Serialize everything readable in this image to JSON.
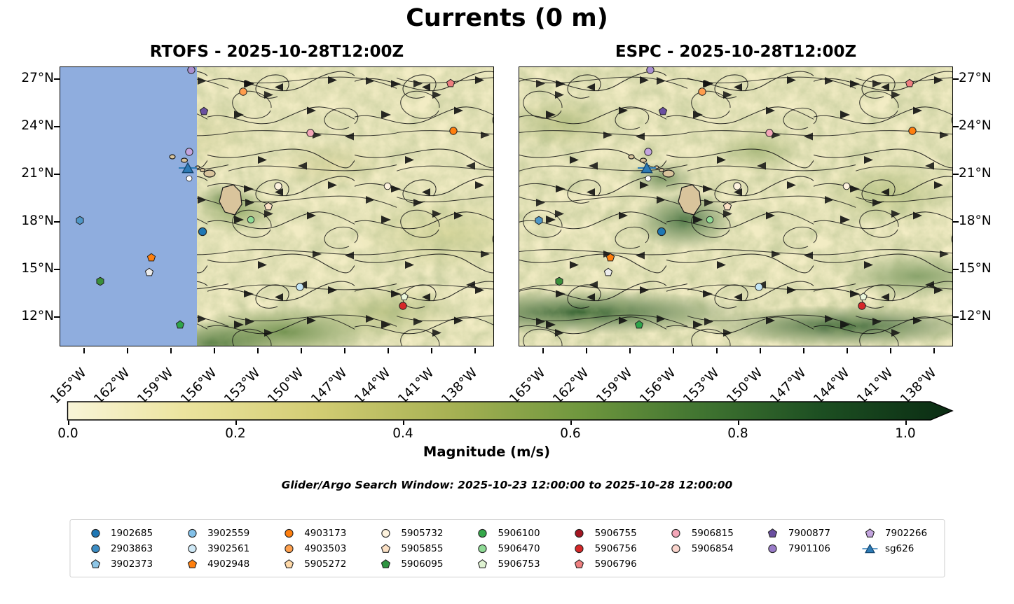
{
  "title": "Currents (0 m)",
  "panels": [
    {
      "id": "rtofs",
      "title": "RTOFS - 2025-10-28T12:00Z"
    },
    {
      "id": "espc",
      "title": "ESPC - 2025-10-28T12:00Z"
    }
  ],
  "axes": {
    "lat_labels": [
      "27°N",
      "24°N",
      "21°N",
      "18°N",
      "15°N",
      "12°N"
    ],
    "lon_labels": [
      "165°W",
      "162°W",
      "159°W",
      "156°W",
      "153°W",
      "150°W",
      "147°W",
      "144°W",
      "141°W",
      "138°W"
    ]
  },
  "colorbar": {
    "label": "Magnitude (m/s)",
    "ticks": [
      "0.0",
      "0.2",
      "0.4",
      "0.6",
      "0.8",
      "1.0"
    ],
    "gradient_stops": [
      "#f9f5d8",
      "#ece49f",
      "#d3cd74",
      "#a8b254",
      "#6f973e",
      "#3f7330",
      "#1d4f22",
      "#0a2c13"
    ]
  },
  "search_window": "Glider/Argo Search Window: 2025-10-23 12:00:00 to 2025-10-28 12:00:00",
  "map": {
    "land_color": "#d9c49c",
    "nodata_color": "#8fadde",
    "nodata_width_pct": 31.5,
    "markers": [
      {
        "shape": "circle",
        "color": "#a98fd0",
        "x": 30.2,
        "y": 1.0,
        "s": 13
      },
      {
        "shape": "circle",
        "color": "#ff9d4d",
        "x": 42.3,
        "y": 8.8,
        "s": 13
      },
      {
        "shape": "pentagon",
        "color": "#ee7f7f",
        "x": 90.2,
        "y": 5.8,
        "s": 13
      },
      {
        "shape": "pentagon",
        "color": "#6a4fa0",
        "x": 33.2,
        "y": 15.8,
        "s": 13
      },
      {
        "shape": "circle",
        "color": "#f4a6b8",
        "x": 57.7,
        "y": 23.5,
        "s": 13
      },
      {
        "shape": "circle",
        "color": "#ff7f0e",
        "x": 90.8,
        "y": 22.8,
        "s": 13
      },
      {
        "shape": "circle",
        "color": "#c3a4de",
        "x": 29.7,
        "y": 30.3,
        "s": 13
      },
      {
        "shape": "glider",
        "color": "#2d7bb6",
        "x": 29.5,
        "y": 36.3,
        "s": 18
      },
      {
        "shape": "circle",
        "color": "#ffffff",
        "x": 29.8,
        "y": 40.0,
        "s": 10
      },
      {
        "shape": "circle",
        "color": "#fdf2dd",
        "x": 50.3,
        "y": 42.8,
        "s": 13
      },
      {
        "shape": "circle",
        "color": "#fdf2dd",
        "x": 75.5,
        "y": 42.8,
        "s": 12
      },
      {
        "shape": "pentagon",
        "color": "#fbe0c4",
        "x": 48.1,
        "y": 50.0,
        "s": 13
      },
      {
        "shape": "circle",
        "color": "#8fdb96",
        "x": 44.0,
        "y": 54.8,
        "s": 12
      },
      {
        "shape": "circle",
        "color": "#1f77b4",
        "x": 32.9,
        "y": 59.0,
        "s": 14
      },
      {
        "shape": "hexagon",
        "color": "#4f97c7",
        "x": 4.5,
        "y": 55.0,
        "s": 13
      },
      {
        "shape": "pentagon",
        "color": "#ff7f0e",
        "x": 21.0,
        "y": 68.3,
        "s": 13
      },
      {
        "shape": "pentagon",
        "color": "#ececec",
        "x": 20.6,
        "y": 73.5,
        "s": 13
      },
      {
        "shape": "hexagon",
        "color": "#3a8f3a",
        "x": 9.2,
        "y": 76.8,
        "s": 13
      },
      {
        "shape": "circle",
        "color": "#c4e6f6",
        "x": 55.3,
        "y": 78.8,
        "s": 13
      },
      {
        "shape": "pentagon",
        "color": "#eaf6da",
        "x": 79.4,
        "y": 82.3,
        "s": 12
      },
      {
        "shape": "circle",
        "color": "#d62728",
        "x": 79.2,
        "y": 85.8,
        "s": 13
      },
      {
        "shape": "pentagon",
        "color": "#2ea44a",
        "x": 27.7,
        "y": 92.5,
        "s": 13
      }
    ]
  },
  "legend": {
    "columns_item_counts": [
      3,
      3,
      3,
      3,
      3,
      3,
      2,
      2,
      2
    ],
    "items": [
      {
        "label": "1902685",
        "shape": "circle",
        "color": "#1f77b4"
      },
      {
        "label": "2903863",
        "shape": "circle",
        "color": "#3c8dc4"
      },
      {
        "label": "3902373",
        "shape": "pentagon",
        "color": "#8ec6e6"
      },
      {
        "label": "3902559",
        "shape": "circle",
        "color": "#82c0e8"
      },
      {
        "label": "3902561",
        "shape": "circle",
        "color": "#cfe9f7"
      },
      {
        "label": "4902948",
        "shape": "pentagon",
        "color": "#ff7f0e"
      },
      {
        "label": "4903173",
        "shape": "circle",
        "color": "#ff7f0e"
      },
      {
        "label": "4903503",
        "shape": "circle",
        "color": "#ffa04d"
      },
      {
        "label": "5905272",
        "shape": "pentagon",
        "color": "#ffd9a8"
      },
      {
        "label": "5905732",
        "shape": "circle",
        "color": "#fdf2dd"
      },
      {
        "label": "5905855",
        "shape": "pentagon",
        "color": "#fbe0c4"
      },
      {
        "label": "5906095",
        "shape": "pentagon",
        "color": "#2e9440"
      },
      {
        "label": "5906100",
        "shape": "circle",
        "color": "#35a84a"
      },
      {
        "label": "5906470",
        "shape": "circle",
        "color": "#8fdb96"
      },
      {
        "label": "5906753",
        "shape": "pentagon",
        "color": "#dff3d2"
      },
      {
        "label": "5906755",
        "shape": "circle",
        "color": "#a41622"
      },
      {
        "label": "5906756",
        "shape": "circle",
        "color": "#d62728"
      },
      {
        "label": "5906796",
        "shape": "pentagon",
        "color": "#ee7f7f"
      },
      {
        "label": "5906815",
        "shape": "circle",
        "color": "#f4a6b8"
      },
      {
        "label": "5906854",
        "shape": "circle",
        "color": "#fbd5cd"
      },
      {
        "label": "7900877",
        "shape": "pentagon",
        "color": "#6a4fa0"
      },
      {
        "label": "7901106",
        "shape": "circle",
        "color": "#9a7cc9"
      },
      {
        "label": "7902266",
        "shape": "pentagon",
        "color": "#c3a4de"
      },
      {
        "label": "sg626",
        "shape": "glider",
        "color": "#2d7bb6"
      }
    ]
  },
  "chart_data": {
    "type": "heatmap",
    "title": "Currents (0 m)",
    "field": "Ocean surface current magnitude with streamlines, central North Pacific around Hawaii",
    "subplots": [
      {
        "title": "RTOFS - 2025-10-28T12:00Z",
        "note": "region west of ~158.5°W masked solid blue (no model data)"
      },
      {
        "title": "ESPC - 2025-10-28T12:00Z",
        "note": "full domain covered; strong zonal jet band near 12-13°N"
      }
    ],
    "lat_ticks_deg_n": [
      27,
      24,
      21,
      18,
      15,
      12
    ],
    "lon_ticks_deg_w": [
      165,
      162,
      159,
      156,
      153,
      150,
      147,
      144,
      141,
      138
    ],
    "approx_extent": {
      "lon_w": [
        166.7,
        136.7
      ],
      "lat_n": [
        10.3,
        27.8
      ]
    },
    "colorbar": {
      "label": "Magnitude (m/s)",
      "min": 0.0,
      "max": 1.0,
      "tick_step": 0.2,
      "extend": "max"
    },
    "caption": "Glider/Argo Search Window: 2025-10-23 12:00:00 to 2025-10-28 12:00:00",
    "platforms": [
      "1902685",
      "2903863",
      "3902373",
      "3902559",
      "3902561",
      "4902948",
      "4903173",
      "4903503",
      "5905272",
      "5905732",
      "5905855",
      "5906095",
      "5906100",
      "5906470",
      "5906753",
      "5906755",
      "5906756",
      "5906796",
      "5906815",
      "5906854",
      "7900877",
      "7901106",
      "7902266",
      "sg626"
    ]
  }
}
